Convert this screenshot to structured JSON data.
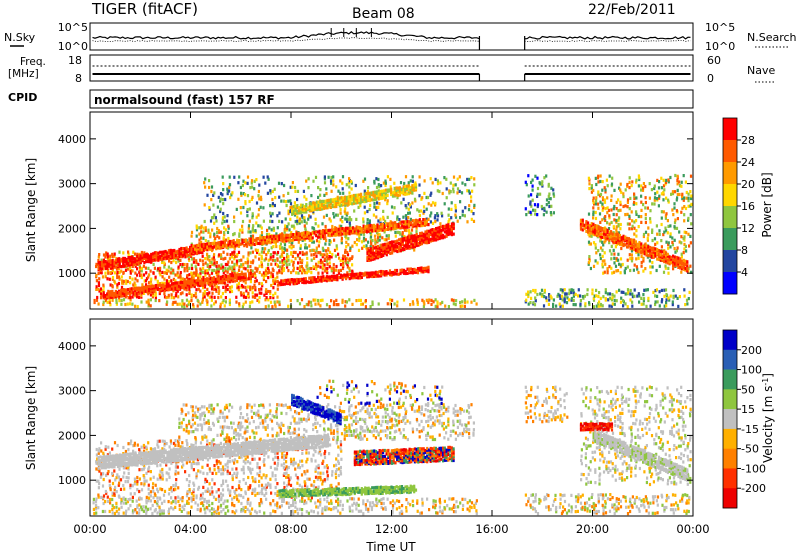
{
  "header": {
    "title": "TIGER (fitACF)",
    "beam": "Beam 08",
    "date": "22/Feb/2011"
  },
  "nsky_panel": {
    "label": "N.Sky",
    "y_ticks": [
      "10^5",
      "10^0"
    ],
    "right_ticks": [
      "10^5",
      "10^0"
    ],
    "right_label": "N.Search",
    "right_label_style": "dotted"
  },
  "freq_panel": {
    "label_line1": "Freq.",
    "label_line2": "[MHz]",
    "y_ticks": [
      "18",
      "8"
    ],
    "right_ticks": [
      "60",
      "0"
    ],
    "right_label": "Nave",
    "right_label_style": "dotted"
  },
  "cpid_panel": {
    "label": "CPID",
    "mode_text": "normalsound (fast) 157 RF"
  },
  "time_axis": {
    "title": "Time UT",
    "range_hours": [
      0,
      24
    ],
    "tick_labels": [
      "00:00",
      "04:00",
      "08:00",
      "12:00",
      "16:00",
      "20:00",
      "00:00"
    ],
    "tick_hours": [
      0,
      4,
      8,
      12,
      16,
      20,
      24
    ],
    "data_gap_hours": [
      15.5,
      17.3
    ]
  },
  "chart_data": [
    {
      "type": "heatmap",
      "ylabel": "Slant Range [km]",
      "ylim": [
        200,
        4600
      ],
      "y_ticks": [
        1000,
        2000,
        3000,
        4000
      ],
      "colorbar_label": "Power [dB]",
      "colorbar_ticks": [
        "28",
        "24",
        "20",
        "16",
        "12",
        "8",
        "4"
      ],
      "colorbar_colors": [
        "#ff0000",
        "#ff5a00",
        "#ff9a00",
        "#ffd700",
        "#8fc63f",
        "#3a9b5c",
        "#2346a0",
        "#0000ff"
      ],
      "scatter_regions": [
        {
          "t0": 0.1,
          "t1": 15.4,
          "r0": 250,
          "r1": 450,
          "density": 0.55,
          "levels": [
            1,
            2,
            3,
            4
          ]
        },
        {
          "t0": 0.2,
          "t1": 7.5,
          "r0": 450,
          "r1": 1050,
          "density": 0.75,
          "levels": [
            0,
            0,
            1,
            1,
            2,
            3
          ]
        },
        {
          "t0": 0.2,
          "t1": 10.5,
          "r0": 1000,
          "r1": 1500,
          "density": 0.8,
          "levels": [
            0,
            1,
            1,
            2,
            3,
            4
          ]
        },
        {
          "t0": 4.0,
          "t1": 13.0,
          "r0": 1500,
          "r1": 2100,
          "density": 0.55,
          "levels": [
            1,
            2,
            3,
            4,
            5
          ]
        },
        {
          "t0": 4.5,
          "t1": 15.3,
          "r0": 2100,
          "r1": 3200,
          "density": 0.35,
          "levels": [
            2,
            3,
            4,
            5,
            6
          ]
        },
        {
          "t0": 17.3,
          "t1": 23.9,
          "r0": 250,
          "r1": 650,
          "density": 0.6,
          "levels": [
            3,
            4,
            5,
            6
          ]
        },
        {
          "t0": 17.3,
          "t1": 18.5,
          "r0": 2300,
          "r1": 3200,
          "density": 0.45,
          "levels": [
            4,
            5,
            6,
            7
          ]
        },
        {
          "t0": 19.8,
          "t1": 23.9,
          "r0": 1000,
          "r1": 3200,
          "density": 0.45,
          "levels": [
            1,
            2,
            3,
            4,
            5
          ]
        }
      ],
      "bands": [
        {
          "t0": 0.3,
          "t1": 4.5,
          "r_start": 1150,
          "r_end": 1550,
          "width": 180,
          "levels": [
            0,
            0,
            1
          ]
        },
        {
          "t0": 0.5,
          "t1": 6.5,
          "r_start": 500,
          "r_end": 950,
          "width": 140,
          "levels": [
            0,
            1,
            1
          ]
        },
        {
          "t0": 4.0,
          "t1": 13.5,
          "r_start": 1550,
          "r_end": 2150,
          "width": 140,
          "levels": [
            0,
            1,
            2
          ]
        },
        {
          "t0": 7.5,
          "t1": 13.5,
          "r_start": 800,
          "r_end": 1100,
          "width": 130,
          "levels": [
            0,
            0,
            1
          ]
        },
        {
          "t0": 11.0,
          "t1": 14.5,
          "r_start": 1400,
          "r_end": 2000,
          "width": 260,
          "levels": [
            0,
            0,
            1
          ]
        },
        {
          "t0": 19.5,
          "t1": 23.8,
          "r_start": 2100,
          "r_end": 1150,
          "width": 240,
          "levels": [
            0,
            1,
            1,
            2
          ]
        },
        {
          "t0": 8.0,
          "t1": 13.0,
          "r_start": 2400,
          "r_end": 2900,
          "width": 180,
          "levels": [
            3,
            4,
            2
          ]
        }
      ]
    },
    {
      "type": "heatmap",
      "ylabel": "Slant Range [km]",
      "ylim": [
        200,
        4600
      ],
      "y_ticks": [
        1000,
        2000,
        3000,
        4000
      ],
      "colorbar_label": "Velocity [m s^-1]",
      "colorbar_ticks": [
        "200",
        "100",
        "50",
        "15",
        "-15",
        "-50",
        "-100",
        "-200"
      ],
      "colorbar_colors": [
        "#0000c8",
        "#2a5fb5",
        "#3a9b5c",
        "#8fc63f",
        "#c0c0c0",
        "#ffb000",
        "#ff8000",
        "#ff3000",
        "#ee0000"
      ],
      "scatter_regions": [
        {
          "t0": 0.1,
          "t1": 15.4,
          "r0": 250,
          "r1": 600,
          "density": 0.55,
          "levels": [
            4,
            4,
            4,
            5,
            6,
            3
          ]
        },
        {
          "t0": 0.2,
          "t1": 10.0,
          "r0": 600,
          "r1": 1900,
          "density": 0.5,
          "levels": [
            4,
            4,
            4,
            4,
            5,
            6,
            7
          ]
        },
        {
          "t0": 3.5,
          "t1": 15.3,
          "r0": 1900,
          "r1": 2700,
          "density": 0.5,
          "levels": [
            4,
            4,
            4,
            5,
            6,
            3
          ]
        },
        {
          "t0": 9.0,
          "t1": 14.0,
          "r0": 2700,
          "r1": 3250,
          "density": 0.35,
          "levels": [
            4,
            5,
            6,
            3,
            0
          ]
        },
        {
          "t0": 17.3,
          "t1": 23.9,
          "r0": 250,
          "r1": 700,
          "density": 0.55,
          "levels": [
            4,
            4,
            5,
            6,
            3
          ]
        },
        {
          "t0": 17.3,
          "t1": 19.0,
          "r0": 2300,
          "r1": 3100,
          "density": 0.45,
          "levels": [
            4,
            4,
            5,
            6
          ]
        },
        {
          "t0": 19.5,
          "t1": 23.9,
          "r0": 900,
          "r1": 3100,
          "density": 0.4,
          "levels": [
            4,
            4,
            4,
            5,
            3
          ]
        }
      ],
      "bands": [
        {
          "t0": 0.3,
          "t1": 9.5,
          "r_start": 1400,
          "r_end": 1900,
          "width": 280,
          "levels": [
            4,
            4,
            4
          ]
        },
        {
          "t0": 8.0,
          "t1": 10.0,
          "r_start": 2800,
          "r_end": 2350,
          "width": 220,
          "levels": [
            0,
            0,
            1
          ]
        },
        {
          "t0": 10.5,
          "t1": 14.5,
          "r_start": 1500,
          "r_end": 1600,
          "width": 320,
          "levels": [
            8,
            7,
            6,
            2,
            0
          ]
        },
        {
          "t0": 7.5,
          "t1": 13.0,
          "r_start": 700,
          "r_end": 800,
          "width": 140,
          "levels": [
            3,
            2,
            3
          ]
        },
        {
          "t0": 19.5,
          "t1": 20.8,
          "r_start": 2200,
          "r_end": 2200,
          "width": 160,
          "levels": [
            8,
            7,
            8
          ]
        },
        {
          "t0": 20.0,
          "t1": 23.8,
          "r_start": 2000,
          "r_end": 1100,
          "width": 260,
          "levels": [
            4,
            4,
            4,
            3
          ]
        }
      ]
    }
  ]
}
